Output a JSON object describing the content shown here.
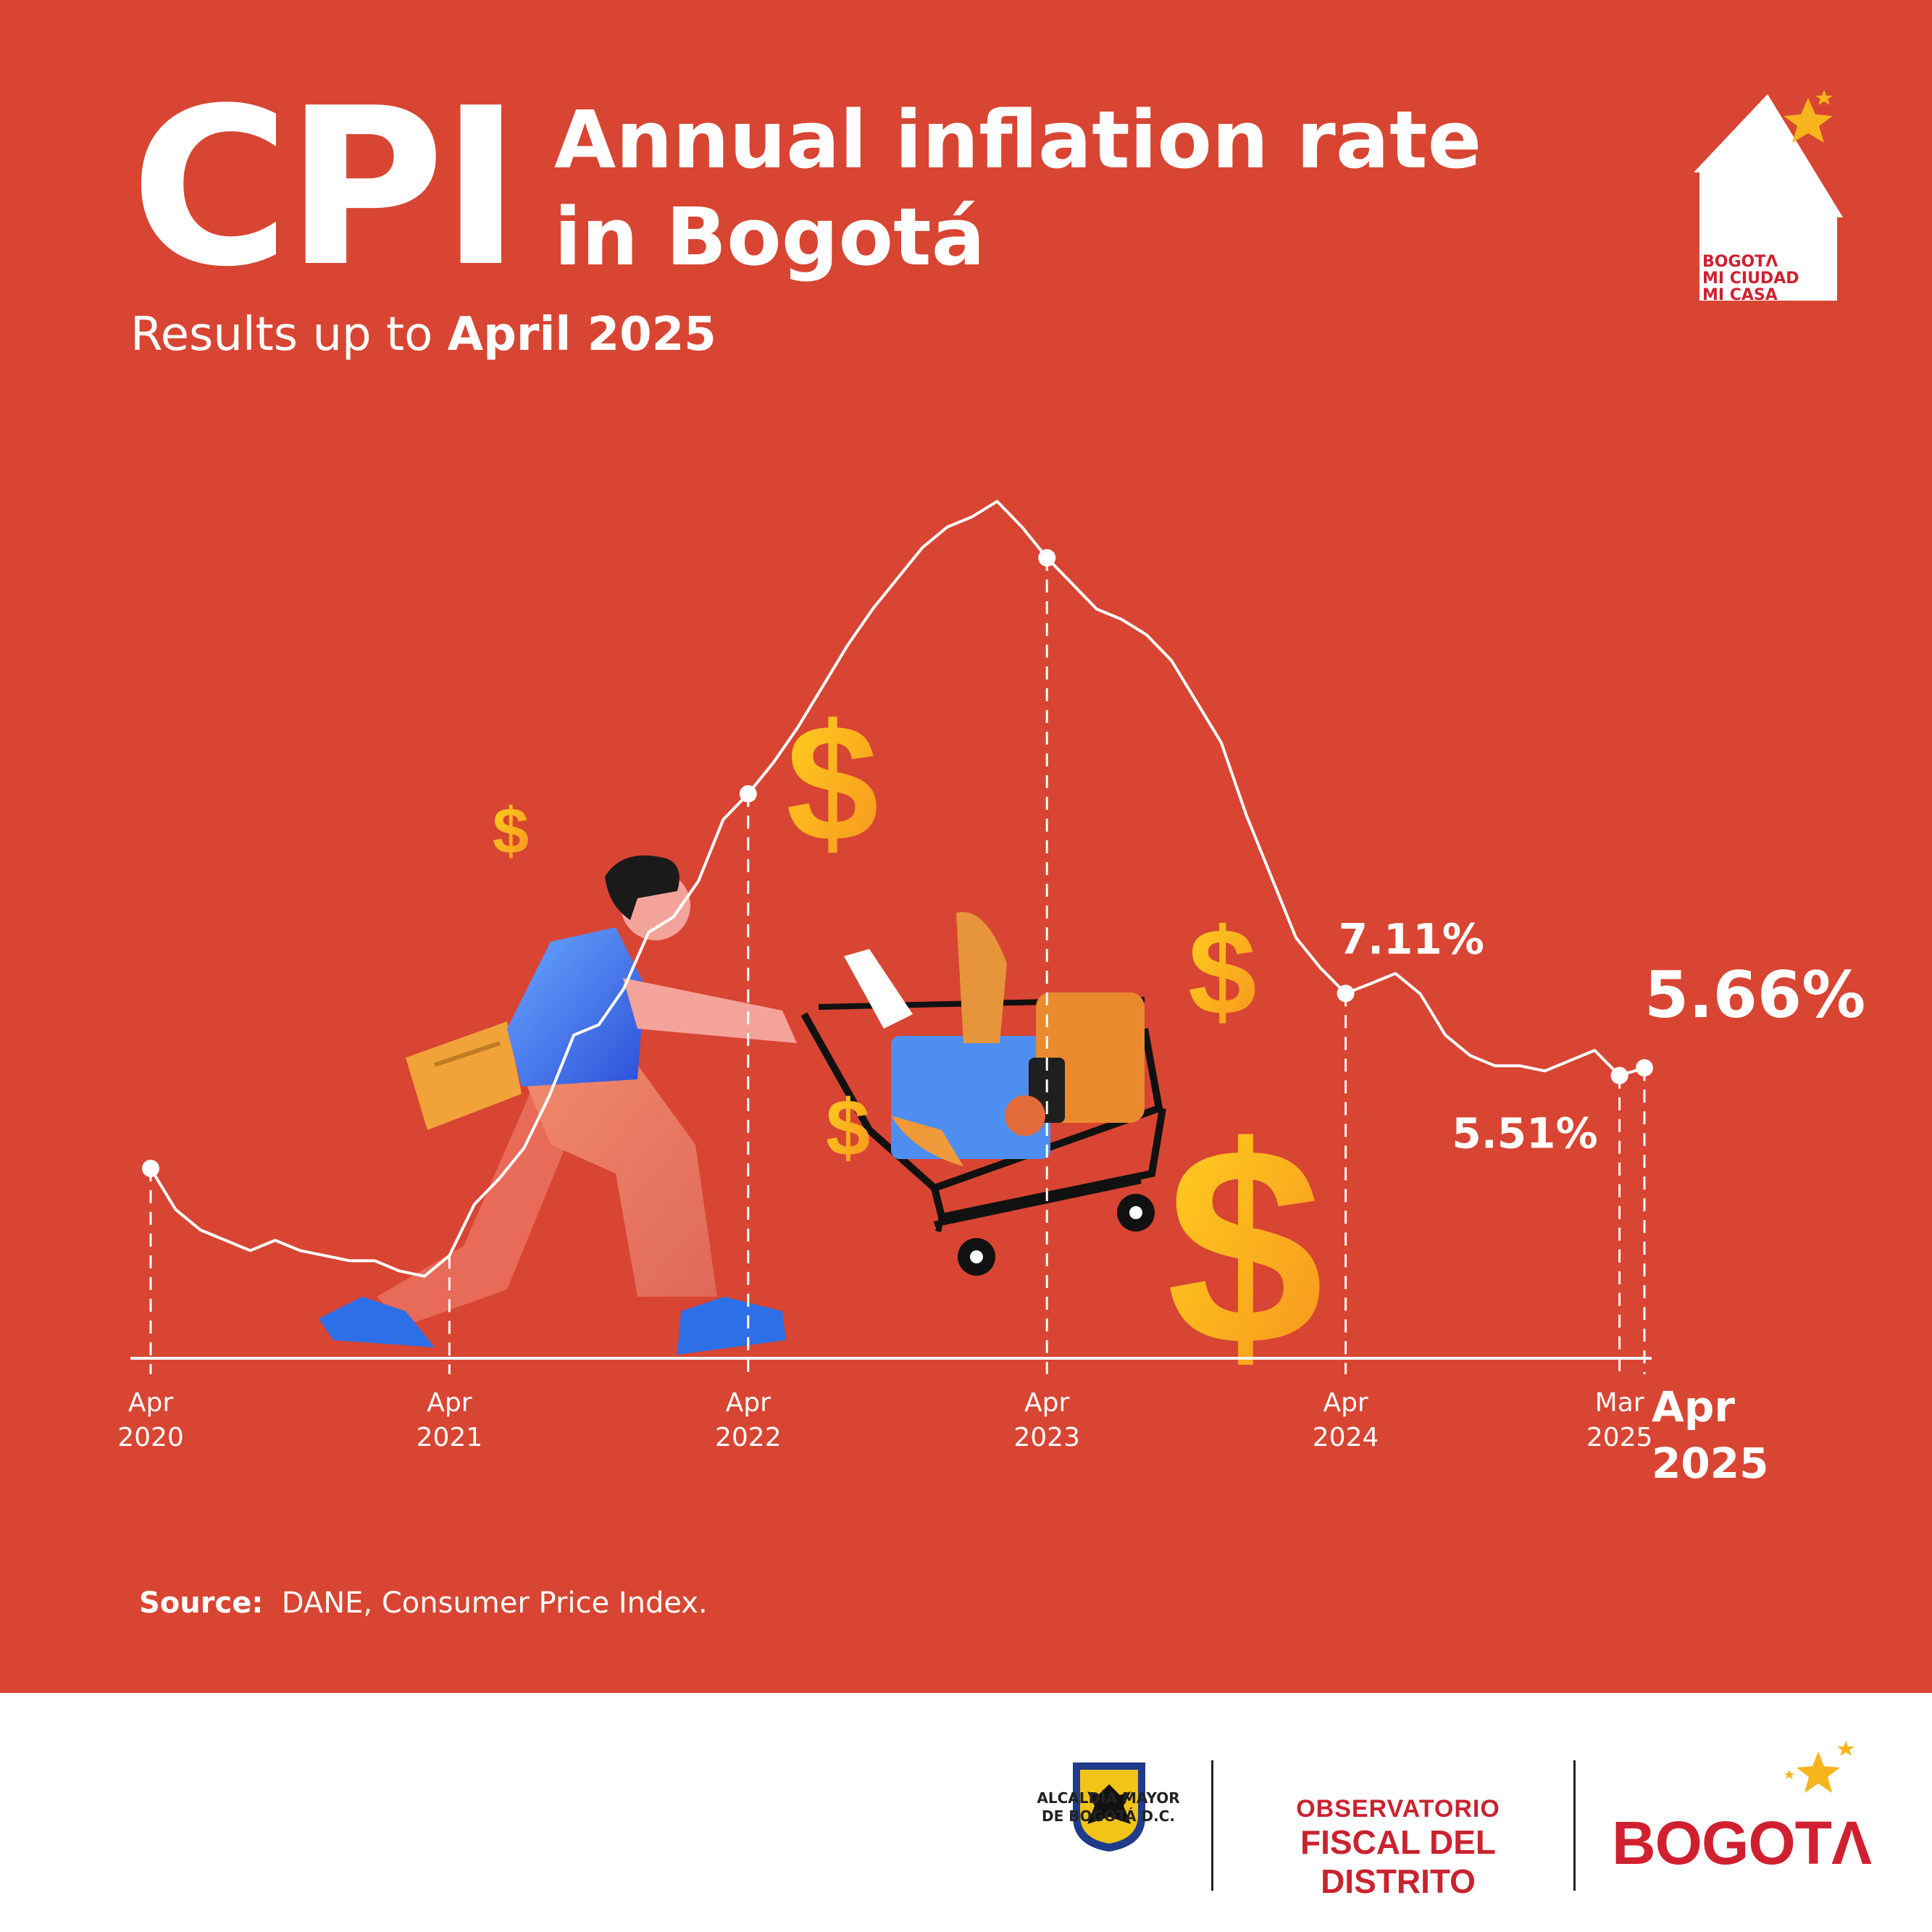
{
  "header": {
    "cpi": "CPI",
    "title_line1": "Annual inflation rate",
    "title_line2": "in Bogotá",
    "subtitle_prefix": "Results up to ",
    "subtitle_bold": "April 2025"
  },
  "source": {
    "label": "Source:",
    "text": "DANE, Consumer Price Index."
  },
  "brand": {
    "house_line1": "BOGOTΛ",
    "house_line2": "MI CIUDAD",
    "house_line3": "MI CASA",
    "alcaldia_line1": "ALCALDÍA MAYOR",
    "alcaldia_line2": "DE BOGOTÁ D.C.",
    "observatorio_line1": "OBSERVATORIO",
    "observatorio_line2": "FISCAL DEL DISTRITO",
    "bogota": "BOGOTΛ"
  },
  "colors": {
    "background": "#d84532",
    "line": "#ffffff",
    "dollar": "#f9a41a",
    "footer_red": "#c9232f"
  },
  "chart_data": {
    "type": "line",
    "title": "Annual inflation rate in Bogotá",
    "xlabel": "",
    "ylabel": "",
    "x": [
      "2020-04",
      "2020-05",
      "2020-06",
      "2020-07",
      "2020-08",
      "2020-09",
      "2020-10",
      "2020-11",
      "2020-12",
      "2021-01",
      "2021-02",
      "2021-03",
      "2021-04",
      "2021-05",
      "2021-06",
      "2021-07",
      "2021-08",
      "2021-09",
      "2021-10",
      "2021-11",
      "2021-12",
      "2022-01",
      "2022-02",
      "2022-03",
      "2022-04",
      "2022-05",
      "2022-06",
      "2022-07",
      "2022-08",
      "2022-09",
      "2022-10",
      "2022-11",
      "2022-12",
      "2023-01",
      "2023-02",
      "2023-03",
      "2023-04",
      "2023-05",
      "2023-06",
      "2023-07",
      "2023-08",
      "2023-09",
      "2023-10",
      "2023-11",
      "2023-12",
      "2024-01",
      "2024-02",
      "2024-03",
      "2024-04",
      "2024-05",
      "2024-06",
      "2024-07",
      "2024-08",
      "2024-09",
      "2024-10",
      "2024-11",
      "2024-12",
      "2025-01",
      "2025-02",
      "2025-03",
      "2025-04"
    ],
    "values": [
      3.7,
      2.9,
      2.5,
      2.3,
      2.1,
      2.3,
      2.1,
      2.0,
      1.9,
      1.9,
      1.7,
      1.6,
      2.0,
      3.0,
      3.5,
      4.1,
      5.1,
      6.3,
      6.5,
      7.2,
      8.3,
      8.6,
      9.3,
      10.5,
      11.0,
      11.6,
      12.3,
      13.1,
      13.9,
      14.6,
      15.2,
      15.8,
      16.2,
      16.4,
      16.7,
      16.2,
      15.6,
      15.1,
      14.6,
      14.4,
      14.1,
      13.6,
      12.8,
      12.0,
      10.6,
      9.4,
      8.2,
      7.6,
      7.11,
      7.3,
      7.5,
      7.1,
      6.3,
      5.9,
      5.7,
      5.7,
      5.6,
      5.8,
      6.0,
      5.51,
      5.66
    ],
    "highlighted_points": [
      {
        "x": "2020-04",
        "value": 3.7
      },
      {
        "x": "2022-04",
        "value": 11.0
      },
      {
        "x": "2023-04",
        "value": 15.6
      },
      {
        "x": "2024-04",
        "value": 7.11,
        "label": "7.11%"
      },
      {
        "x": "2025-03",
        "value": 5.51,
        "label": "5.51%"
      },
      {
        "x": "2025-04",
        "value": 5.66,
        "label": "5.66%"
      }
    ],
    "x_ticks": [
      {
        "x": "2020-04",
        "line1": "Apr",
        "line2": "2020"
      },
      {
        "x": "2021-04",
        "line1": "Apr",
        "line2": "2021"
      },
      {
        "x": "2022-04",
        "line1": "Apr",
        "line2": "2022"
      },
      {
        "x": "2023-04",
        "line1": "Apr",
        "line2": "2023"
      },
      {
        "x": "2024-04",
        "line1": "Apr",
        "line2": "2024"
      },
      {
        "x": "2025-03",
        "line1": "Mar",
        "line2": "2025"
      },
      {
        "x": "2025-04",
        "line1": "Apr",
        "line2": "2025",
        "emphasis": true
      }
    ],
    "ylim": [
      0,
      18
    ],
    "grid": false,
    "legend": "none"
  }
}
